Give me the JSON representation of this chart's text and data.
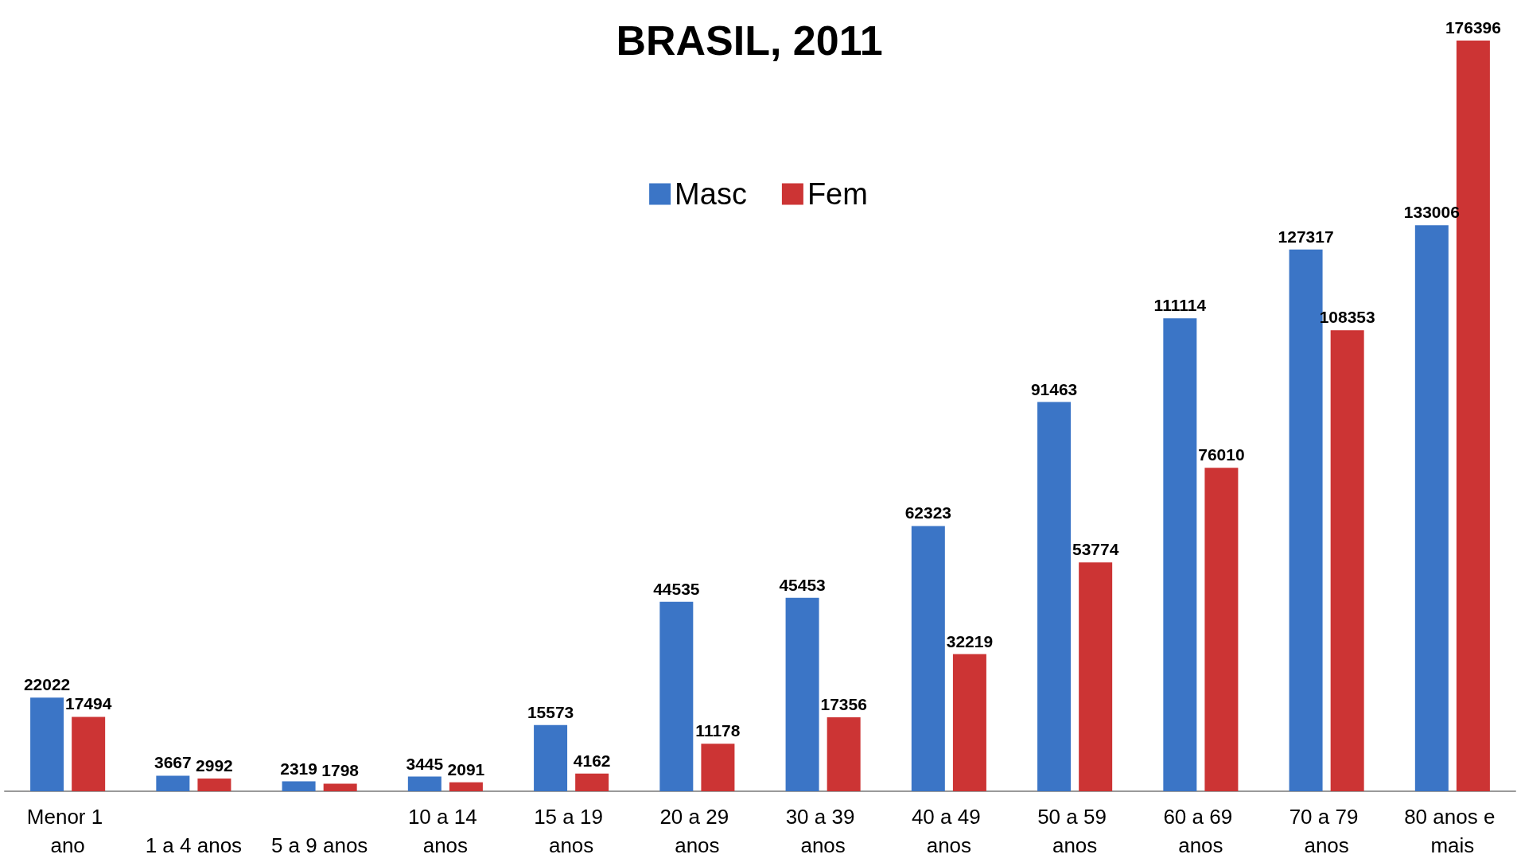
{
  "chart_data": {
    "type": "bar",
    "title": "BRASIL, 2011",
    "categories": [
      "Menor 1 ano",
      "1 a 4 anos",
      "5 a 9 anos",
      "10 a 14 anos",
      "15 a 19 anos",
      "20 a 29 anos",
      "30 a 39 anos",
      "40 a 49 anos",
      "50 a 59 anos",
      "60 a 69 anos",
      "70 a 79 anos",
      "80 anos e mais"
    ],
    "series": [
      {
        "name": "Masc",
        "color": "#3b75c6",
        "values": [
          22022,
          3667,
          2319,
          3445,
          15573,
          44535,
          45453,
          62323,
          91463,
          111114,
          127317,
          133006
        ]
      },
      {
        "name": "Fem",
        "color": "#cc3434",
        "values": [
          17494,
          2992,
          1798,
          2091,
          4162,
          11178,
          17356,
          32219,
          53774,
          76010,
          108353,
          176396
        ]
      }
    ],
    "data_labels": true,
    "legend": "top"
  }
}
